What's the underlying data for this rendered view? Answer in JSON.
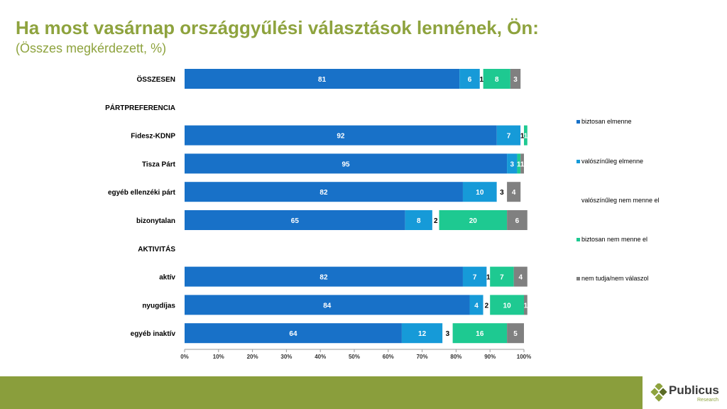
{
  "title": "Ha most vasárnap országgyűlési választások lennének, Ön:",
  "subtitle": "(Összes megkérdezett, %)",
  "logo": {
    "name": "Publicus",
    "sub": "Research"
  },
  "chart_data": {
    "type": "bar",
    "orientation": "horizontal",
    "stacked": true,
    "x_range": [
      0,
      100
    ],
    "x_ticks": [
      "0%",
      "10%",
      "20%",
      "30%",
      "40%",
      "50%",
      "60%",
      "70%",
      "80%",
      "90%",
      "100%"
    ],
    "rows": [
      {
        "label": "ÖSSZESEN",
        "values": [
          81,
          6,
          1,
          8,
          3
        ]
      },
      {
        "label": "PÁRTPREFERENCIA",
        "values": null
      },
      {
        "label": "Fidesz-KDNP",
        "values": [
          92,
          7,
          1,
          1,
          null
        ]
      },
      {
        "label": "Tisza Párt",
        "values": [
          95,
          3,
          null,
          1,
          1
        ]
      },
      {
        "label": "egyéb ellenzéki párt",
        "values": [
          82,
          10,
          3,
          null,
          4
        ]
      },
      {
        "label": "bizonytalan",
        "values": [
          65,
          8,
          2,
          20,
          6
        ]
      },
      {
        "label": "AKTIVITÁS",
        "values": null
      },
      {
        "label": "aktív",
        "values": [
          82,
          7,
          1,
          7,
          4
        ]
      },
      {
        "label": "nyugdíjas",
        "values": [
          84,
          4,
          2,
          10,
          1
        ]
      },
      {
        "label": "egyéb inaktív",
        "values": [
          64,
          12,
          3,
          16,
          5
        ]
      }
    ],
    "series": [
      {
        "name": "biztosan elmenne",
        "color": "#1871c8",
        "label_color": "#ffffff"
      },
      {
        "name": "valószínűleg elmenne",
        "color": "#169ad8",
        "label_color": "#ffffff"
      },
      {
        "name": "valószínűleg nem menne el",
        "color": "#ffffff",
        "label_color": "#000000"
      },
      {
        "name": "biztosan nem menne el",
        "color": "#1ec991",
        "label_color": "#ffffff"
      },
      {
        "name": "nem tudja/nem válaszol",
        "color": "#808080",
        "label_color": "#ffffff"
      }
    ],
    "legend_position": "right"
  }
}
